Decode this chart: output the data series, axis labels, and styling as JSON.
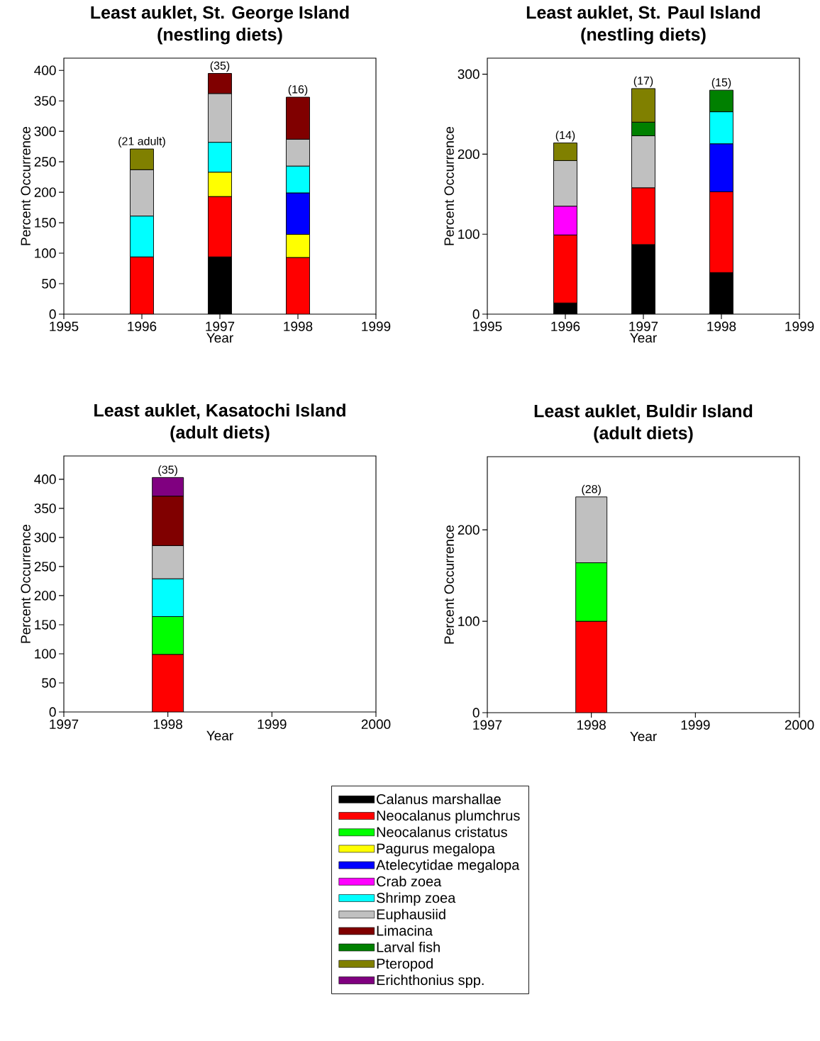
{
  "chart_data": [
    {
      "type": "bar",
      "stacked": true,
      "title": "Least auklet, St. George Island",
      "subtitle": "(nestling diets)",
      "xlabel": "Year",
      "ylabel": "Percent Occurrence",
      "x": [
        1996,
        1997,
        1998
      ],
      "series": [
        {
          "color": "#000000",
          "values": [
            null,
            94,
            null
          ]
        },
        {
          "color": "#ff0000",
          "values": [
            94,
            99,
            93
          ]
        },
        {
          "color": "#ffff00",
          "values": [
            null,
            40,
            38
          ]
        },
        {
          "color": "#0000ff",
          "values": [
            null,
            null,
            68
          ]
        },
        {
          "color": "#00ffff",
          "values": [
            67,
            49,
            44
          ]
        },
        {
          "color": "#c0c0c0",
          "values": [
            76,
            80,
            44
          ]
        },
        {
          "color": "#800000",
          "values": [
            null,
            33,
            69
          ]
        },
        {
          "color": "#808000",
          "values": [
            34,
            null,
            null
          ]
        }
      ],
      "xlim": [
        1995,
        1999
      ],
      "xticks": [
        1995,
        1996,
        1997,
        1998,
        1999
      ],
      "ylim": [
        0,
        420
      ],
      "yticks": [
        0,
        50,
        100,
        150,
        200,
        250,
        300,
        350,
        400
      ],
      "annotations": [
        {
          "text": "(21 adult)",
          "x": 1996,
          "y": 271
        },
        {
          "text": "(35)",
          "x": 1997,
          "y": 395
        },
        {
          "text": "(16)",
          "x": 1998,
          "y": 356
        }
      ]
    },
    {
      "type": "bar",
      "stacked": true,
      "title": "Least auklet, St. Paul Island",
      "subtitle": "(nestling diets)",
      "xlabel": "Year",
      "ylabel": "Percent Occurrence",
      "x": [
        1996,
        1997,
        1998
      ],
      "series": [
        {
          "color": "#000000",
          "values": [
            14,
            87,
            52
          ]
        },
        {
          "color": "#ff0000",
          "values": [
            85,
            71,
            101
          ]
        },
        {
          "color": "#0000ff",
          "values": [
            null,
            null,
            60
          ]
        },
        {
          "color": "#ff00ff",
          "values": [
            36,
            null,
            null
          ]
        },
        {
          "color": "#00ffff",
          "values": [
            null,
            null,
            40
          ]
        },
        {
          "color": "#c0c0c0",
          "values": [
            57,
            65,
            null
          ]
        },
        {
          "color": "#008000",
          "values": [
            null,
            17,
            27
          ]
        },
        {
          "color": "#808000",
          "values": [
            22,
            42,
            null
          ]
        }
      ],
      "xlim": [
        1995,
        1999
      ],
      "xticks": [
        1995,
        1996,
        1997,
        1998,
        1999
      ],
      "ylim": [
        0,
        320
      ],
      "yticks": [
        0,
        100,
        200,
        300
      ],
      "annotations": [
        {
          "text": "(14)",
          "x": 1996,
          "y": 214
        },
        {
          "text": "(17)",
          "x": 1997,
          "y": 282
        },
        {
          "text": "(15)",
          "x": 1998,
          "y": 280
        }
      ]
    },
    {
      "type": "bar",
      "stacked": true,
      "title": "Least auklet, Kasatochi Island",
      "subtitle": "(adult diets)",
      "xlabel": "Year",
      "ylabel": "Percent Occurrence",
      "x": [
        1998
      ],
      "series": [
        {
          "color": "#ff0000",
          "values": [
            99
          ]
        },
        {
          "color": "#00ff00",
          "values": [
            65
          ]
        },
        {
          "color": "#00ffff",
          "values": [
            65
          ]
        },
        {
          "color": "#c0c0c0",
          "values": [
            57
          ]
        },
        {
          "color": "#800000",
          "values": [
            85
          ]
        },
        {
          "color": "#800080",
          "values": [
            32
          ]
        }
      ],
      "xlim": [
        1997,
        2000
      ],
      "xticks": [
        1997,
        1998,
        1999,
        2000
      ],
      "ylim": [
        0,
        440
      ],
      "yticks": [
        0,
        50,
        100,
        150,
        200,
        250,
        300,
        350,
        400
      ],
      "annotations": [
        {
          "text": "(35)",
          "x": 1998,
          "y": 403
        }
      ]
    },
    {
      "type": "bar",
      "stacked": true,
      "title": "Least auklet, Buldir Island",
      "subtitle": "(adult diets)",
      "xlabel": "Year",
      "ylabel": "Percent Occurrence",
      "x": [
        1998
      ],
      "series": [
        {
          "name": "Calanus marshallae",
          "color": "#000000",
          "values": [
            null
          ]
        },
        {
          "name": "Neocalanus plumchrus",
          "color": "#ff0000",
          "values": [
            100
          ]
        },
        {
          "name": "Neocalanus cristatus",
          "color": "#00ff00",
          "values": [
            64
          ]
        },
        {
          "name": "Pagurus megalopa",
          "color": "#ffff00",
          "values": [
            null
          ]
        },
        {
          "name": "Atelecytidae megalopa",
          "color": "#0000ff",
          "values": [
            null
          ]
        },
        {
          "name": "Crab zoea",
          "color": "#ff00ff",
          "values": [
            null
          ]
        },
        {
          "name": "Shrimp zoea",
          "color": "#00ffff",
          "values": [
            null
          ]
        },
        {
          "name": "Euphausiid",
          "color": "#c0c0c0",
          "values": [
            72
          ]
        },
        {
          "name": "Limacina",
          "color": "#800000",
          "values": [
            null
          ]
        },
        {
          "name": "Larval fish",
          "color": "#008000",
          "values": [
            null
          ]
        },
        {
          "name": "Pteropod",
          "color": "#808000",
          "values": [
            null
          ]
        },
        {
          "name": "Erichthonius spp.",
          "color": "#800080",
          "values": [
            null
          ]
        }
      ],
      "xlim": [
        1997,
        2000
      ],
      "xticks": [
        1997,
        1998,
        1999,
        2000
      ],
      "ylim": [
        0,
        280
      ],
      "yticks": [
        0,
        100,
        200
      ],
      "legend": "bottom",
      "annotations": [
        {
          "text": "(28)",
          "x": 1998,
          "y": 236
        }
      ]
    }
  ]
}
